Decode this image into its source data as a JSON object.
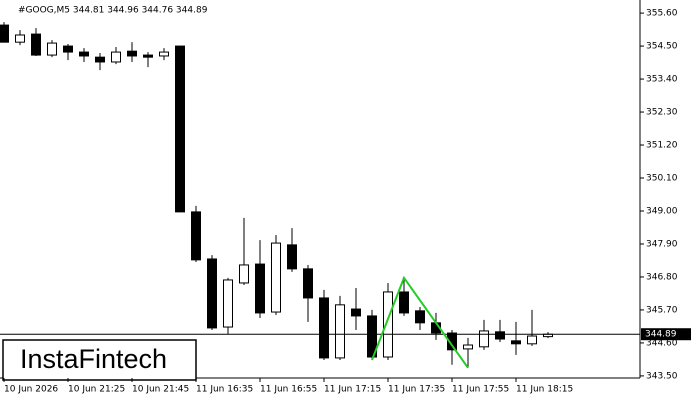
{
  "chart_data": {
    "type": "candlestick",
    "title": "#GOOG,M5  344.81 344.96 344.76 344.89",
    "watermark": "InstaFintech",
    "categories": [
      "10 Jun 2026",
      null,
      null,
      null,
      "10 Jun 21:25",
      null,
      null,
      null,
      "10 Jun 21:45",
      null,
      null,
      null,
      "11 Jun 16:35",
      null,
      null,
      null,
      "11 Jun 16:55",
      null,
      null,
      null,
      "11 Jun 17:15",
      null,
      null,
      null,
      "11 Jun 17:35",
      null,
      null,
      null,
      "11 Jun 17:55",
      null,
      null,
      null,
      "11 Jun 18:15",
      null,
      null
    ],
    "open": [
      355.2,
      354.63,
      354.9,
      354.2,
      354.5,
      354.3,
      354.13,
      353.97,
      354.33,
      354.2,
      354.17,
      354.5,
      348.97,
      347.4,
      345.13,
      346.6,
      347.23,
      345.63,
      347.87,
      347.07,
      346.1,
      344.1,
      345.73,
      345.5,
      344.13,
      346.3,
      345.67,
      345.27,
      344.93,
      344.4,
      344.47,
      344.97,
      344.67,
      344.57,
      344.81
    ],
    "high": [
      355.3,
      355.03,
      355.1,
      354.7,
      354.57,
      354.43,
      354.27,
      354.47,
      354.63,
      354.3,
      354.43,
      354.5,
      349.17,
      347.53,
      346.77,
      348.77,
      348.03,
      348.2,
      348.43,
      347.2,
      346.37,
      346.17,
      346.43,
      345.7,
      346.6,
      346.7,
      345.8,
      345.6,
      345.03,
      344.77,
      345.37,
      345.37,
      345.3,
      345.7,
      344.96
    ],
    "low": [
      354.63,
      354.53,
      354.17,
      354.13,
      354.03,
      353.97,
      353.7,
      353.9,
      353.97,
      353.8,
      354.03,
      348.97,
      347.3,
      345.03,
      344.9,
      346.53,
      345.43,
      345.53,
      346.97,
      345.3,
      344.03,
      344.03,
      345.03,
      344.03,
      344.03,
      345.5,
      345.03,
      344.7,
      343.87,
      343.77,
      344.37,
      344.63,
      344.2,
      344.5,
      344.76
    ],
    "close": [
      354.63,
      354.87,
      354.2,
      354.6,
      354.3,
      354.17,
      353.97,
      354.3,
      354.17,
      354.13,
      354.3,
      348.97,
      347.37,
      345.1,
      346.7,
      347.2,
      345.6,
      347.93,
      347.07,
      346.1,
      344.1,
      345.87,
      345.5,
      344.13,
      346.3,
      345.6,
      345.27,
      344.93,
      344.37,
      344.53,
      345.0,
      344.73,
      344.57,
      344.83,
      344.89
    ],
    "up_color": "#ffffff",
    "down_color": "#000000",
    "ylim": [
      343.43,
      355.97
    ],
    "yticks": [
      {
        "value": 355.6,
        "label": "355.60"
      },
      {
        "value": 354.5,
        "label": "354.50"
      },
      {
        "value": 353.4,
        "label": "353.40"
      },
      {
        "value": 352.3,
        "label": "352.30"
      },
      {
        "value": 351.2,
        "label": "351.20"
      },
      {
        "value": 350.1,
        "label": "350.10"
      },
      {
        "value": 349.0,
        "label": "349.00"
      },
      {
        "value": 347.9,
        "label": "347.90"
      },
      {
        "value": 346.8,
        "label": "346.80"
      },
      {
        "value": 345.7,
        "label": "345.70"
      },
      {
        "value": 344.6,
        "label": "344.60"
      },
      {
        "value": 343.5,
        "label": "343.50"
      }
    ],
    "price_line": 344.89,
    "pattern_line": {
      "color": "#22cc22",
      "points": [
        {
          "index": 23,
          "value": 344.03
        },
        {
          "index": 25,
          "value": 346.77
        },
        {
          "index": 29,
          "value": 343.77
        }
      ]
    }
  }
}
